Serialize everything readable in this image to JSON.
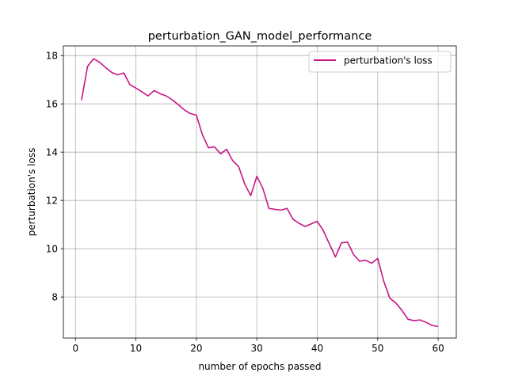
{
  "chart_data": {
    "type": "line",
    "title": "perturbation_GAN_model_performance",
    "xlabel": "number of epochs passed",
    "ylabel": "perturbation's loss",
    "xlim": [
      -2,
      63
    ],
    "ylim": [
      6.3,
      18.4
    ],
    "xticks": [
      0,
      10,
      20,
      30,
      40,
      50,
      60
    ],
    "yticks": [
      8,
      10,
      12,
      14,
      16,
      18
    ],
    "grid": true,
    "legend_position": "top-right",
    "series": [
      {
        "name": "perturbation's loss",
        "color": "#c71585",
        "x": [
          1,
          2,
          3,
          4,
          5,
          6,
          7,
          8,
          9,
          10,
          11,
          12,
          13,
          14,
          15,
          16,
          17,
          18,
          19,
          20,
          21,
          22,
          23,
          24,
          25,
          26,
          27,
          28,
          29,
          30,
          31,
          32,
          33,
          34,
          35,
          36,
          37,
          38,
          39,
          40,
          41,
          42,
          43,
          44,
          45,
          46,
          47,
          48,
          49,
          50,
          51,
          52,
          53,
          54,
          55,
          56,
          57,
          58,
          59,
          60
        ],
        "y": [
          16.15,
          17.55,
          17.87,
          17.72,
          17.5,
          17.3,
          17.2,
          17.28,
          16.8,
          16.65,
          16.5,
          16.33,
          16.55,
          16.42,
          16.33,
          16.17,
          15.97,
          15.75,
          15.6,
          15.53,
          14.72,
          14.18,
          14.22,
          13.93,
          14.12,
          13.65,
          13.4,
          12.68,
          12.2,
          13.0,
          12.5,
          11.67,
          11.63,
          11.6,
          11.67,
          11.22,
          11.05,
          10.92,
          11.03,
          11.14,
          10.75,
          10.2,
          9.66,
          10.24,
          10.28,
          9.76,
          9.48,
          9.52,
          9.4,
          9.6,
          8.65,
          7.95,
          7.75,
          7.45,
          7.08,
          7.02,
          7.05,
          6.95,
          6.82,
          6.78
        ]
      }
    ]
  }
}
